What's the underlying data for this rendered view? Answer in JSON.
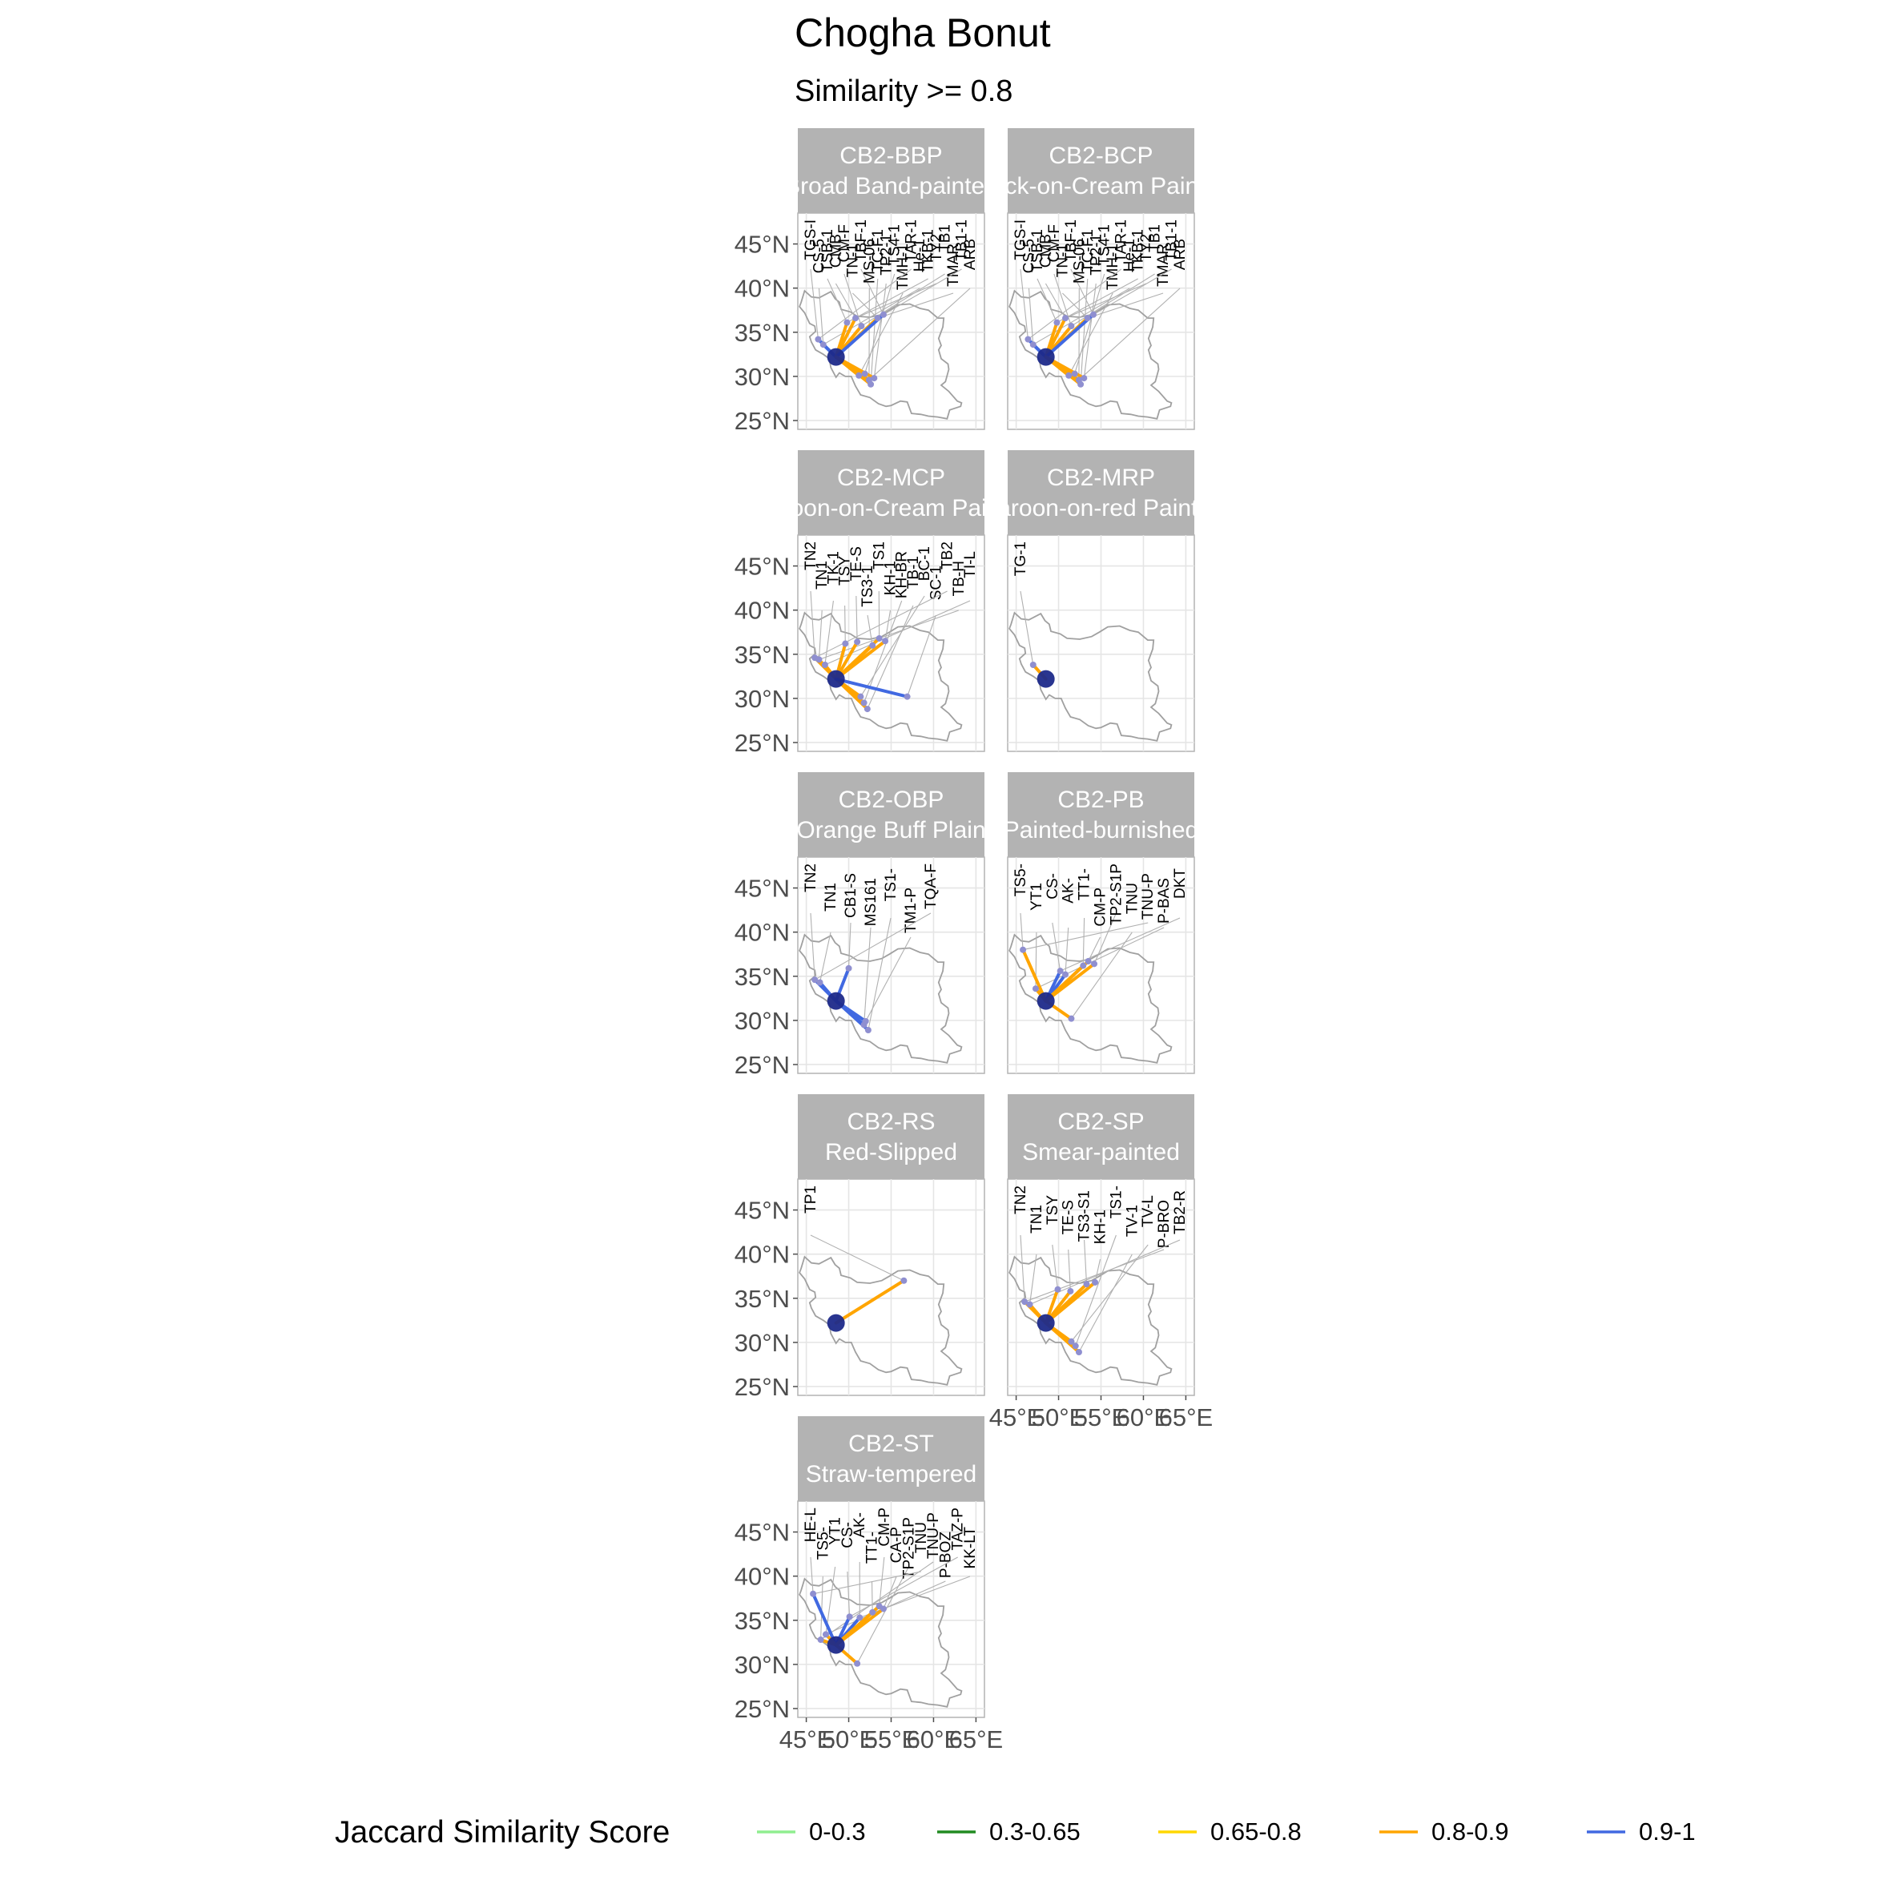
{
  "title": "Chogha Bonut",
  "subtitle": "Similarity >= 0.8",
  "legend": {
    "title": "Jaccard Similarity Score",
    "items": [
      {
        "label": "0-0.3",
        "color": "#90ee90"
      },
      {
        "label": "0.3-0.65",
        "color": "#228b22"
      },
      {
        "label": "0.65-0.8",
        "color": "#ffd700"
      },
      {
        "label": "0.8-0.9",
        "color": "#ffa500"
      },
      {
        "label": "0.9-1",
        "color": "#4169e1"
      }
    ]
  },
  "colors": {
    "strip_bg": "#b3b3b3",
    "grid": "#e5e5e5",
    "panel_border": "#b3b3b3",
    "map_outline": "#a0a0a0",
    "focal_site": "#1e2a8a",
    "leader_line": "#b0b0b0",
    "site_point": "#8f8fd0"
  },
  "chart_data": {
    "type": "faceted map network",
    "focal_site": {
      "name": "Chogha Bonut",
      "lon": 48.5,
      "lat": 32.2
    },
    "x_ticks": [
      "45°E",
      "50°E",
      "55°E",
      "60°E",
      "65°E"
    ],
    "y_ticks": [
      "25°N",
      "30°N",
      "35°N",
      "40°N",
      "45°N"
    ],
    "xlim": [
      44,
      66
    ],
    "ylim": [
      24,
      48.5
    ],
    "panels": [
      {
        "code": "CB2-BBP",
        "name": "Broad Band-painted",
        "labels": [
          "TGS-I",
          "CS-5",
          "TSB-1",
          "CMB",
          "CM-F",
          "TN-1",
          "TBF-1",
          "MS-06",
          "TC-F1",
          "TP2-1",
          "TS4-1",
          "TMH-1",
          "TAR-1",
          "He-1",
          "TKB-1",
          "TY2",
          "TB1",
          "TMAR",
          "TB1-1",
          "ARB"
        ],
        "links": [
          {
            "lon": 46.4,
            "lat": 34.2,
            "score": 0.95
          },
          {
            "lon": 47.0,
            "lat": 33.6,
            "score": 0.92
          },
          {
            "lon": 49.8,
            "lat": 36.1,
            "score": 0.85
          },
          {
            "lon": 50.8,
            "lat": 36.6,
            "score": 0.86
          },
          {
            "lon": 51.5,
            "lat": 35.7,
            "score": 0.83
          },
          {
            "lon": 53.4,
            "lat": 36.6,
            "score": 0.87
          },
          {
            "lon": 54.1,
            "lat": 37.0,
            "score": 0.94
          },
          {
            "lon": 52.4,
            "lat": 29.6,
            "score": 0.88
          },
          {
            "lon": 52.6,
            "lat": 29.1,
            "score": 0.85
          },
          {
            "lon": 53.0,
            "lat": 29.8,
            "score": 0.86
          },
          {
            "lon": 51.9,
            "lat": 30.3,
            "score": 0.84
          },
          {
            "lon": 51.2,
            "lat": 30.1,
            "score": 0.82
          }
        ]
      },
      {
        "code": "CB2-BCP",
        "name": "Black-on-Cream Painted",
        "labels": [
          "TGS-I",
          "CS-5",
          "TSB-1",
          "CMB",
          "CM-F",
          "TN-1",
          "TBF-1",
          "MS-06",
          "TC-F1",
          "TP2-1",
          "TS4-1",
          "TMH-1",
          "TAR-1",
          "He-1",
          "TKB-1",
          "TY2",
          "TB1",
          "TMAR",
          "TB1-1",
          "ARB"
        ],
        "links": [
          {
            "lon": 46.4,
            "lat": 34.2,
            "score": 0.95
          },
          {
            "lon": 47.0,
            "lat": 33.6,
            "score": 0.92
          },
          {
            "lon": 49.8,
            "lat": 36.1,
            "score": 0.85
          },
          {
            "lon": 50.8,
            "lat": 36.6,
            "score": 0.86
          },
          {
            "lon": 51.5,
            "lat": 35.7,
            "score": 0.83
          },
          {
            "lon": 53.4,
            "lat": 36.6,
            "score": 0.87
          },
          {
            "lon": 54.1,
            "lat": 37.0,
            "score": 0.94
          },
          {
            "lon": 52.4,
            "lat": 29.6,
            "score": 0.88
          },
          {
            "lon": 52.6,
            "lat": 29.1,
            "score": 0.85
          },
          {
            "lon": 53.0,
            "lat": 29.8,
            "score": 0.86
          },
          {
            "lon": 51.9,
            "lat": 30.3,
            "score": 0.84
          },
          {
            "lon": 51.2,
            "lat": 30.1,
            "score": 0.82
          }
        ]
      },
      {
        "code": "CB2-MCP",
        "name": "Maroon-on-Cream Painted",
        "labels": [
          "TN2",
          "TN1",
          "TK-1",
          "TSY",
          "TE-S",
          "TS3-1",
          "TS1",
          "KH-1",
          "KH-BR",
          "TB-1",
          "BC-1",
          "SC-1",
          "TB2",
          "TB-H",
          "TI-L"
        ],
        "links": [
          {
            "lon": 46.0,
            "lat": 34.6,
            "score": 0.86
          },
          {
            "lon": 46.5,
            "lat": 34.4,
            "score": 0.85
          },
          {
            "lon": 47.2,
            "lat": 33.8,
            "score": 0.88
          },
          {
            "lon": 49.6,
            "lat": 36.2,
            "score": 0.84
          },
          {
            "lon": 51.0,
            "lat": 36.4,
            "score": 0.85
          },
          {
            "lon": 52.8,
            "lat": 36.0,
            "score": 0.86
          },
          {
            "lon": 53.6,
            "lat": 36.8,
            "score": 0.83
          },
          {
            "lon": 54.3,
            "lat": 36.5,
            "score": 0.87
          },
          {
            "lon": 51.8,
            "lat": 29.5,
            "score": 0.85
          },
          {
            "lon": 52.2,
            "lat": 28.8,
            "score": 0.84
          },
          {
            "lon": 51.4,
            "lat": 30.2,
            "score": 0.86
          },
          {
            "lon": 56.9,
            "lat": 30.2,
            "score": 0.93
          }
        ]
      },
      {
        "code": "CB2-MRP",
        "name": "Maroon-on-red Painted",
        "labels": [
          "TG-1"
        ],
        "links": [
          {
            "lon": 47.0,
            "lat": 33.8,
            "score": 0.85
          }
        ]
      },
      {
        "code": "CB2-OBP",
        "name": "Orange Buff Plain",
        "labels": [
          "TN2",
          "TN1",
          "CB1-S",
          "MS161",
          "TS1-",
          "TM1-P",
          "TQA-F"
        ],
        "links": [
          {
            "lon": 46.0,
            "lat": 34.6,
            "score": 0.93
          },
          {
            "lon": 46.6,
            "lat": 34.3,
            "score": 0.92
          },
          {
            "lon": 50.0,
            "lat": 35.9,
            "score": 0.94
          },
          {
            "lon": 51.8,
            "lat": 29.5,
            "score": 0.95
          },
          {
            "lon": 52.3,
            "lat": 28.9,
            "score": 0.93
          },
          {
            "lon": 52.0,
            "lat": 29.9,
            "score": 0.92
          }
        ]
      },
      {
        "code": "CB2-PB",
        "name": "Painted-burnished",
        "labels": [
          "TS5-",
          "YT1",
          "CS-",
          "AK-",
          "TT1-",
          "CM-P",
          "TP2-S1P",
          "TNU",
          "TNU-P",
          "P-BAS",
          "DKT"
        ],
        "links": [
          {
            "lon": 45.8,
            "lat": 38.0,
            "score": 0.86
          },
          {
            "lon": 47.3,
            "lat": 33.6,
            "score": 0.85
          },
          {
            "lon": 50.2,
            "lat": 35.6,
            "score": 0.95
          },
          {
            "lon": 50.8,
            "lat": 35.2,
            "score": 0.93
          },
          {
            "lon": 52.9,
            "lat": 36.2,
            "score": 0.88
          },
          {
            "lon": 53.5,
            "lat": 36.7,
            "score": 0.87
          },
          {
            "lon": 54.2,
            "lat": 36.4,
            "score": 0.86
          },
          {
            "lon": 51.5,
            "lat": 30.2,
            "score": 0.84
          }
        ]
      },
      {
        "code": "CB2-RS",
        "name": "Red-Slipped",
        "labels": [
          "TP1"
        ],
        "links": [
          {
            "lon": 56.5,
            "lat": 37.0,
            "score": 0.85
          }
        ]
      },
      {
        "code": "CB2-SP",
        "name": "Smear-painted",
        "labels": [
          "TN2",
          "TN1",
          "TSY",
          "TE-S",
          "TS3-S1",
          "KH-1",
          "TS1-",
          "TV-1",
          "TV-L",
          "P-BRO",
          "TB2-R"
        ],
        "links": [
          {
            "lon": 46.0,
            "lat": 34.6,
            "score": 0.88
          },
          {
            "lon": 46.6,
            "lat": 34.3,
            "score": 0.86
          },
          {
            "lon": 49.9,
            "lat": 36.0,
            "score": 0.85
          },
          {
            "lon": 51.4,
            "lat": 35.8,
            "score": 0.87
          },
          {
            "lon": 53.3,
            "lat": 36.6,
            "score": 0.86
          },
          {
            "lon": 54.3,
            "lat": 36.8,
            "score": 0.84
          },
          {
            "lon": 52.0,
            "lat": 29.6,
            "score": 0.85
          },
          {
            "lon": 52.4,
            "lat": 28.9,
            "score": 0.86
          },
          {
            "lon": 51.5,
            "lat": 30.1,
            "score": 0.84
          }
        ]
      },
      {
        "code": "CB2-ST",
        "name": "Straw-tempered",
        "labels": [
          "HE-L",
          "TS5-",
          "YT1",
          "CS-",
          "AK-",
          "TT1-",
          "CM-P",
          "CA-P",
          "TP2-S1P",
          "TNU",
          "TNU-P",
          "P-BOZ",
          "TAZ-P",
          "KK-LT"
        ],
        "links": [
          {
            "lon": 45.8,
            "lat": 38.0,
            "score": 0.93
          },
          {
            "lon": 46.7,
            "lat": 32.8,
            "score": 0.86
          },
          {
            "lon": 47.3,
            "lat": 33.4,
            "score": 0.85
          },
          {
            "lon": 50.1,
            "lat": 35.4,
            "score": 0.94
          },
          {
            "lon": 51.3,
            "lat": 35.3,
            "score": 0.92
          },
          {
            "lon": 52.8,
            "lat": 35.9,
            "score": 0.87
          },
          {
            "lon": 53.6,
            "lat": 36.6,
            "score": 0.86
          },
          {
            "lon": 54.1,
            "lat": 36.3,
            "score": 0.85
          },
          {
            "lon": 51.0,
            "lat": 30.1,
            "score": 0.85
          }
        ]
      }
    ]
  }
}
